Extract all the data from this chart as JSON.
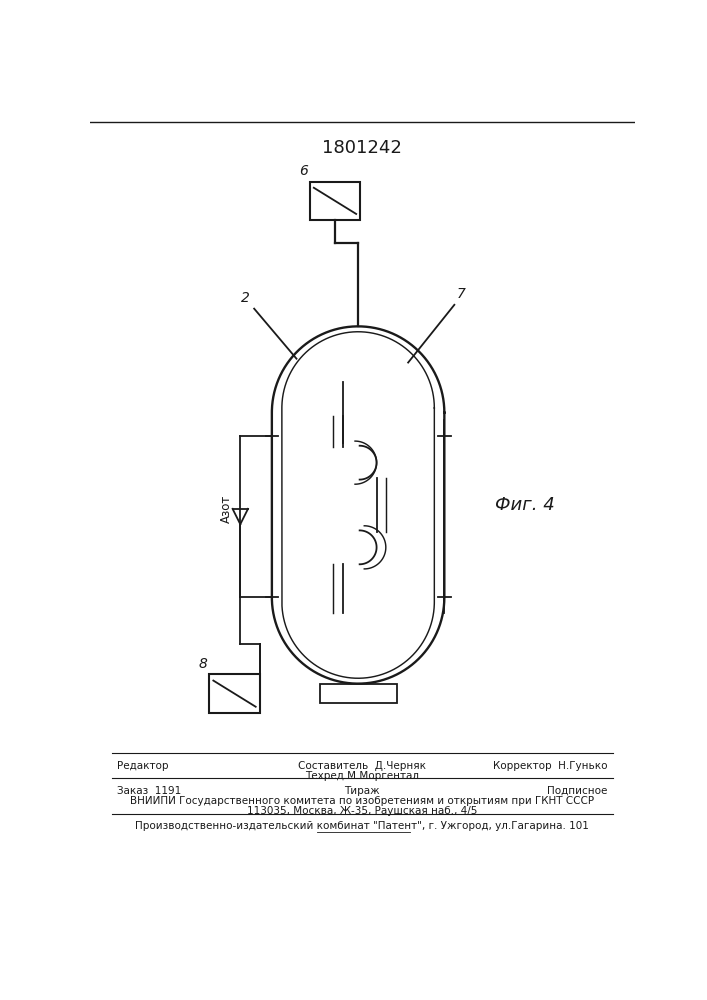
{
  "title": "1801242",
  "bg_color": "#ffffff",
  "line_color": "#1a1a1a",
  "fig_label": "Фиг. 4",
  "azot_label": "Азот",
  "label_6": "6",
  "label_2": "2",
  "label_7": "7",
  "label_8": "8"
}
